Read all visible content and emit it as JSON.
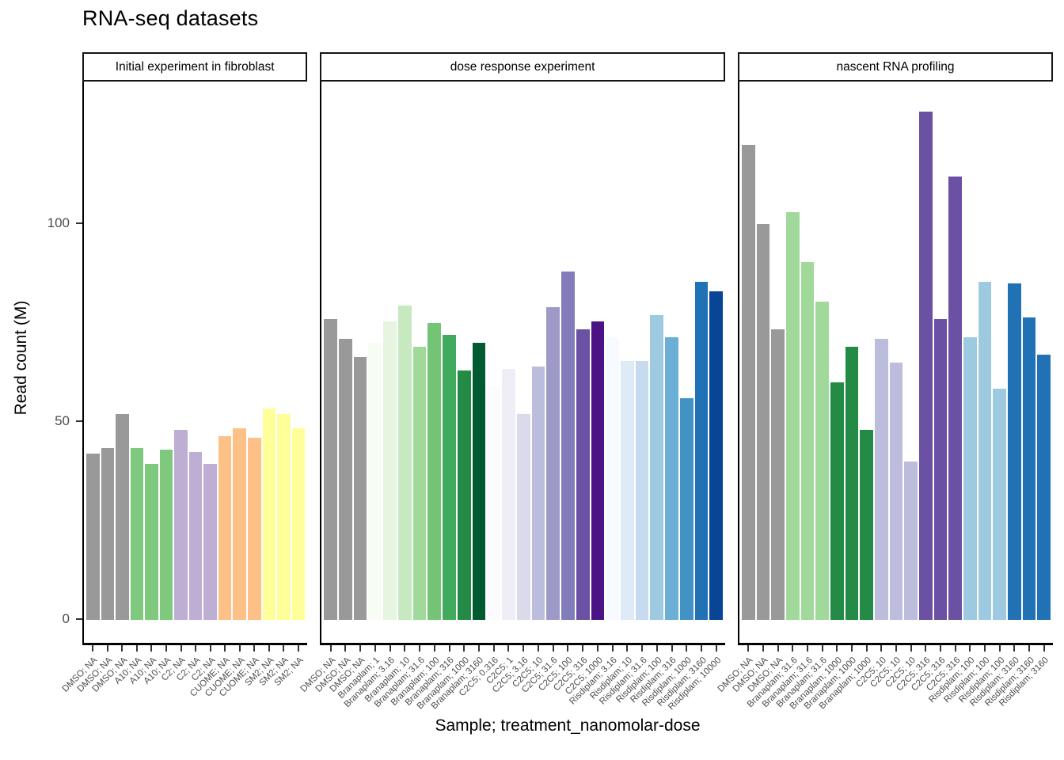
{
  "title": "RNA-seq datasets",
  "axes": {
    "y_label": "Read count (M)",
    "x_label": "Sample; treatment_nanomolar-dose"
  },
  "chart_data": {
    "type": "bar",
    "title": "RNA-seq datasets",
    "xlabel": "Sample; treatment_nanomolar-dose",
    "ylabel": "Read count (M)",
    "ylim": [
      0,
      135
    ],
    "yticks": [
      0,
      50,
      100
    ],
    "grid": "off",
    "legend": "none",
    "facets": [
      {
        "label": "Initial experiment in fibroblast",
        "bars": [
          {
            "label": "DMSO; NA",
            "value": 42,
            "color": "#999999"
          },
          {
            "label": "DMSO; NA",
            "value": 43.5,
            "color": "#999999"
          },
          {
            "label": "DMSO; NA",
            "value": 52,
            "color": "#999999"
          },
          {
            "label": "A10; NA",
            "value": 43.5,
            "color": "#7FC97F"
          },
          {
            "label": "A10; NA",
            "value": 39.5,
            "color": "#7FC97F"
          },
          {
            "label": "A10; NA",
            "value": 43,
            "color": "#7FC97F"
          },
          {
            "label": "C2; NA",
            "value": 48,
            "color": "#BEAED4"
          },
          {
            "label": "C2; NA",
            "value": 42.5,
            "color": "#BEAED4"
          },
          {
            "label": "C2; NA",
            "value": 39.5,
            "color": "#BEAED4"
          },
          {
            "label": "CUOME; NA",
            "value": 46.5,
            "color": "#FDC086"
          },
          {
            "label": "CUOME; NA",
            "value": 48.5,
            "color": "#FDC086"
          },
          {
            "label": "CUOME; NA",
            "value": 46,
            "color": "#FDC086"
          },
          {
            "label": "SM2; NA",
            "value": 53.5,
            "color": "#FFFF99"
          },
          {
            "label": "SM2; NA",
            "value": 52,
            "color": "#FFFF99"
          },
          {
            "label": "SM2; NA",
            "value": 48.5,
            "color": "#FFFF99"
          }
        ]
      },
      {
        "label": "dose response experiment",
        "bars": [
          {
            "label": "DMSO; NA",
            "value": 76,
            "color": "#999999"
          },
          {
            "label": "DMSO; NA",
            "value": 71,
            "color": "#999999"
          },
          {
            "label": "DMSO; NA",
            "value": 66.5,
            "color": "#999999"
          },
          {
            "label": "Branaplam; 1",
            "value": 70,
            "color": "#F7FCF5"
          },
          {
            "label": "Branaplam; 3.16",
            "value": 75.5,
            "color": "#E5F5E0"
          },
          {
            "label": "Branaplam; 10",
            "value": 79.5,
            "color": "#C7E9C0"
          },
          {
            "label": "Branaplam; 31.6",
            "value": 69,
            "color": "#A1D99B"
          },
          {
            "label": "Branaplam; 100",
            "value": 75,
            "color": "#74C476"
          },
          {
            "label": "Branaplam; 316",
            "value": 72,
            "color": "#41AB5D"
          },
          {
            "label": "Branaplam; 1000",
            "value": 63,
            "color": "#238B45"
          },
          {
            "label": "Branaplam; 3160",
            "value": 70,
            "color": "#005A32"
          },
          {
            "label": "C2C5; 0.316",
            "value": 59,
            "color": "#FCFBFD"
          },
          {
            "label": "C2C5; 1",
            "value": 63.5,
            "color": "#EFEDF5"
          },
          {
            "label": "C2C5; 3.16",
            "value": 52,
            "color": "#DADAEB"
          },
          {
            "label": "C2C5; 10",
            "value": 64,
            "color": "#BCBDDC"
          },
          {
            "label": "C2C5; 31.6",
            "value": 79,
            "color": "#9E9AC8"
          },
          {
            "label": "C2C5; 100",
            "value": 88,
            "color": "#807DBA"
          },
          {
            "label": "C2C5; 316",
            "value": 73.5,
            "color": "#6A51A3"
          },
          {
            "label": "C2C5; 1000",
            "value": 75.5,
            "color": "#4A1486"
          },
          {
            "label": "Risdiplam; 3.16",
            "value": 71.5,
            "color": "#F7FBFF"
          },
          {
            "label": "Risdiplam; 10",
            "value": 65.5,
            "color": "#DEEBF7"
          },
          {
            "label": "Risdiplam; 31.6",
            "value": 65.5,
            "color": "#C6DBEF"
          },
          {
            "label": "Risdiplam; 100",
            "value": 77,
            "color": "#9ECAE1"
          },
          {
            "label": "Risdiplam; 316",
            "value": 71.5,
            "color": "#6BAED6"
          },
          {
            "label": "Risdiplam; 1000",
            "value": 56,
            "color": "#4292C6"
          },
          {
            "label": "Risdiplam; 3160",
            "value": 85.5,
            "color": "#2171B5"
          },
          {
            "label": "Risdiplam; 10000",
            "value": 83,
            "color": "#084594"
          }
        ]
      },
      {
        "label": "nascent RNA profiling",
        "bars": [
          {
            "label": "DMSO; NA",
            "value": 120,
            "color": "#999999"
          },
          {
            "label": "DMSO; NA",
            "value": 100,
            "color": "#999999"
          },
          {
            "label": "DMSO; NA",
            "value": 73.5,
            "color": "#999999"
          },
          {
            "label": "Branaplam; 31.6",
            "value": 103,
            "color": "#A1D99B"
          },
          {
            "label": "Branaplam; 31.6",
            "value": 90.5,
            "color": "#A1D99B"
          },
          {
            "label": "Branaplam; 31.6",
            "value": 80.5,
            "color": "#A1D99B"
          },
          {
            "label": "Branaplam; 1000",
            "value": 60,
            "color": "#238B45"
          },
          {
            "label": "Branaplam; 1000",
            "value": 69,
            "color": "#238B45"
          },
          {
            "label": "Branaplam; 1000",
            "value": 48,
            "color": "#238B45"
          },
          {
            "label": "C2C5; 10",
            "value": 71,
            "color": "#BCBDDC"
          },
          {
            "label": "C2C5; 10",
            "value": 65,
            "color": "#BCBDDC"
          },
          {
            "label": "C2C5; 10",
            "value": 40,
            "color": "#BCBDDC"
          },
          {
            "label": "C2C5; 316",
            "value": 128.5,
            "color": "#6A51A3"
          },
          {
            "label": "C2C5; 316",
            "value": 76,
            "color": "#6A51A3"
          },
          {
            "label": "C2C5; 316",
            "value": 112,
            "color": "#6A51A3"
          },
          {
            "label": "Risdiplam; 100",
            "value": 71.5,
            "color": "#9ECAE1"
          },
          {
            "label": "Risdiplam; 100",
            "value": 85.5,
            "color": "#9ECAE1"
          },
          {
            "label": "Risdiplam; 100",
            "value": 58.5,
            "color": "#9ECAE1"
          },
          {
            "label": "Risdiplam; 3160",
            "value": 85,
            "color": "#2171B5"
          },
          {
            "label": "Risdiplam; 3160",
            "value": 76.5,
            "color": "#2171B5"
          },
          {
            "label": "Risdiplam; 3160",
            "value": 67,
            "color": "#2171B5"
          }
        ]
      }
    ]
  }
}
